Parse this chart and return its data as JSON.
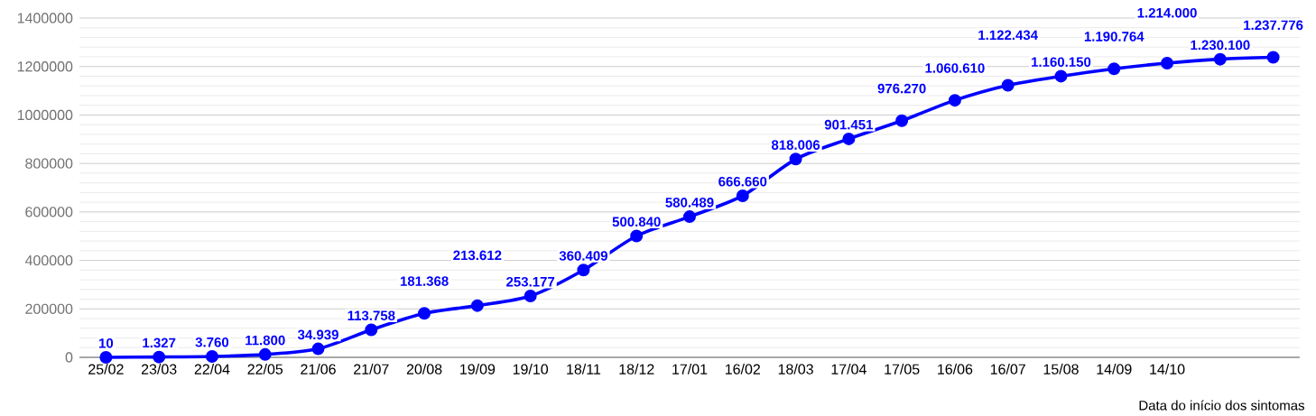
{
  "chart_data": {
    "type": "line",
    "xlabel": "Data do início dos sintomas",
    "categories": [
      "25/02",
      "23/03",
      "22/04",
      "22/05",
      "21/06",
      "21/07",
      "20/08",
      "19/09",
      "19/10",
      "18/11",
      "18/12",
      "17/01",
      "16/02",
      "18/03",
      "17/04",
      "17/05",
      "16/06",
      "16/07",
      "15/08",
      "14/09",
      "14/10",
      null,
      null
    ],
    "series": [
      {
        "color": "#0000ff",
        "values": [
          10,
          1327,
          3760,
          11800,
          34939,
          113758,
          181368,
          213612,
          253177,
          360409,
          500840,
          580489,
          666660,
          818006,
          901451,
          976270,
          1060610,
          1122434,
          1160150,
          1190764,
          1214000,
          1230100,
          1237776
        ],
        "value_labels": [
          "10",
          "1.327",
          "3.760",
          "11.800",
          "34.939",
          "113.758",
          "181.368",
          "213.612",
          "253.177",
          "360.409",
          "500.840",
          "580.489",
          "666.660",
          "818.006",
          "901.451",
          "976.270",
          "1.060.610",
          "1.122.434",
          "1.160.150",
          "1.190.764",
          "1.214.000",
          "1.230.100",
          "1.237.776"
        ]
      }
    ],
    "ylim": [
      0,
      1400000
    ],
    "yticks": [
      0,
      200000,
      400000,
      600000,
      800000,
      1000000,
      1200000,
      1400000
    ],
    "grid": "y",
    "marker": "circle",
    "line_style": "solid"
  }
}
